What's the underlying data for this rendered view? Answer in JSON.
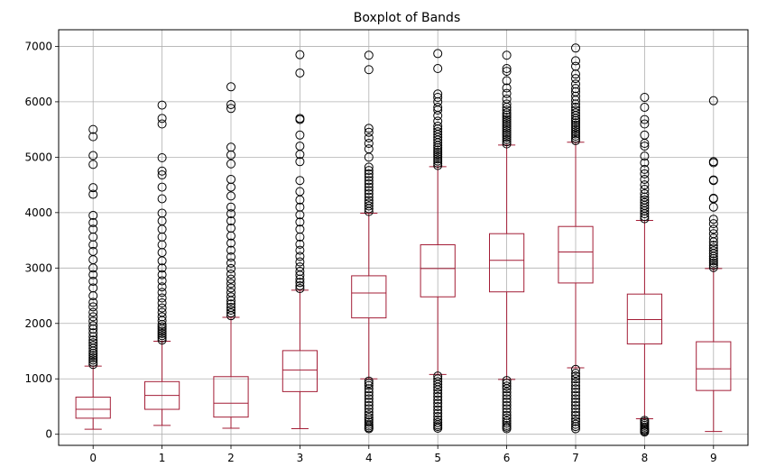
{
  "chart_data": {
    "type": "boxplot",
    "title": "Boxplot of Bands",
    "xlabel": "",
    "ylabel": "",
    "categories": [
      "0",
      "1",
      "2",
      "3",
      "4",
      "5",
      "6",
      "7",
      "8",
      "9"
    ],
    "ylim": [
      -200,
      7300
    ],
    "yticks": [
      0,
      1000,
      2000,
      3000,
      4000,
      5000,
      6000,
      7000
    ],
    "grid": true,
    "box_color": "#a31d36",
    "boxes": [
      {
        "label": "0",
        "whisker_low": 90,
        "q1": 290,
        "median": 450,
        "q3": 670,
        "whisker_high": 1230,
        "outliers_high": [
          1260,
          1300,
          1340,
          1380,
          1420,
          1460,
          1500,
          1550,
          1600,
          1650,
          1700,
          1760,
          1830,
          1900,
          1960,
          2040,
          2120,
          2200,
          2300,
          2380,
          2500,
          2640,
          2760,
          2880,
          3000,
          3150,
          3300,
          3420,
          3560,
          3700,
          3820,
          3950,
          4330,
          4450,
          4870,
          5030,
          5370,
          5500
        ],
        "outliers_low": []
      },
      {
        "label": "1",
        "whisker_low": 160,
        "q1": 450,
        "median": 700,
        "q3": 950,
        "whisker_high": 1680,
        "outliers_high": [
          1700,
          1740,
          1780,
          1820,
          1860,
          1900,
          1940,
          1980,
          2050,
          2120,
          2200,
          2280,
          2370,
          2460,
          2560,
          2660,
          2770,
          2880,
          3000,
          3130,
          3280,
          3420,
          3560,
          3700,
          3850,
          3990,
          4250,
          4460,
          4680,
          4750,
          4990,
          5600,
          5700,
          5940
        ],
        "outliers_low": []
      },
      {
        "label": "2",
        "whisker_low": 110,
        "q1": 310,
        "median": 560,
        "q3": 1040,
        "whisker_high": 2110,
        "outliers_high": [
          2140,
          2190,
          2240,
          2290,
          2350,
          2410,
          2480,
          2560,
          2640,
          2720,
          2800,
          2890,
          2990,
          3090,
          3200,
          3320,
          3450,
          3580,
          3720,
          3850,
          3980,
          4100,
          4300,
          4460,
          4600,
          4880,
          5040,
          5180,
          5880,
          5950,
          6270
        ],
        "outliers_low": []
      },
      {
        "label": "3",
        "whisker_low": 100,
        "q1": 770,
        "median": 1160,
        "q3": 1510,
        "whisker_high": 2600,
        "outliers_high": [
          2630,
          2680,
          2740,
          2800,
          2870,
          2940,
          3020,
          3110,
          3210,
          3320,
          3430,
          3560,
          3700,
          3830,
          3960,
          4100,
          4230,
          4380,
          4580,
          4920,
          5050,
          5200,
          5400,
          5680,
          5700,
          6520,
          6850
        ],
        "outliers_low": []
      },
      {
        "label": "4",
        "whisker_low": 1000,
        "q1": 2100,
        "median": 2550,
        "q3": 2860,
        "whisker_high": 3990,
        "outliers_high": [
          4020,
          4070,
          4120,
          4170,
          4220,
          4280,
          4340,
          4400,
          4460,
          4520,
          4580,
          4640,
          4700,
          4760,
          4820,
          5000,
          5150,
          5250,
          5350,
          5450,
          5520,
          6580,
          6840
        ],
        "outliers_low": [
          960,
          920,
          880,
          820,
          760,
          700,
          640,
          580,
          520,
          460,
          400,
          350,
          300,
          260,
          220,
          180,
          150,
          120,
          100
        ]
      },
      {
        "label": "5",
        "whisker_low": 1080,
        "q1": 2480,
        "median": 2990,
        "q3": 3420,
        "whisker_high": 4830,
        "outliers_high": [
          4850,
          4890,
          4930,
          4970,
          5010,
          5050,
          5090,
          5130,
          5170,
          5210,
          5260,
          5310,
          5360,
          5410,
          5460,
          5510,
          5560,
          5650,
          5750,
          5850,
          5900,
          6000,
          6080,
          6140,
          6600,
          6870
        ],
        "outliers_low": [
          1050,
          1000,
          950,
          900,
          850,
          800,
          740,
          680,
          620,
          560,
          500,
          440,
          380,
          320,
          260,
          210,
          170,
          140,
          110
        ]
      },
      {
        "label": "6",
        "whisker_low": 990,
        "q1": 2570,
        "median": 3140,
        "q3": 3620,
        "whisker_high": 5220,
        "outliers_high": [
          5240,
          5280,
          5320,
          5360,
          5400,
          5440,
          5480,
          5520,
          5560,
          5600,
          5640,
          5680,
          5720,
          5760,
          5800,
          5850,
          5900,
          5960,
          6050,
          6150,
          6250,
          6380,
          6550,
          6600,
          6840
        ],
        "outliers_low": [
          970,
          920,
          870,
          820,
          760,
          700,
          640,
          580,
          520,
          460,
          400,
          340,
          290,
          240,
          200,
          160,
          130,
          100
        ]
      },
      {
        "label": "7",
        "whisker_low": 1200,
        "q1": 2730,
        "median": 3290,
        "q3": 3750,
        "whisker_high": 5270,
        "outliers_high": [
          5300,
          5340,
          5380,
          5420,
          5460,
          5500,
          5540,
          5580,
          5620,
          5660,
          5700,
          5750,
          5800,
          5850,
          5900,
          5960,
          6030,
          6100,
          6180,
          6240,
          6320,
          6420,
          6500,
          6640,
          6740,
          6970
        ],
        "outliers_low": [
          1170,
          1100,
          1050,
          1000,
          940,
          880,
          820,
          760,
          700,
          640,
          580,
          520,
          460,
          400,
          340,
          280,
          230,
          180,
          140,
          100
        ]
      },
      {
        "label": "8",
        "whisker_low": 280,
        "q1": 1630,
        "median": 2070,
        "q3": 2530,
        "whisker_high": 3860,
        "outliers_high": [
          3890,
          3930,
          3980,
          4030,
          4080,
          4130,
          4180,
          4230,
          4280,
          4340,
          4420,
          4500,
          4600,
          4700,
          4780,
          4900,
          5020,
          5200,
          5250,
          5400,
          5600,
          5680,
          5900,
          6080
        ],
        "outliers_low": [
          250,
          220,
          190,
          160,
          130,
          100,
          80,
          60,
          40
        ]
      },
      {
        "label": "9",
        "whisker_low": 50,
        "q1": 790,
        "median": 1180,
        "q3": 1670,
        "whisker_high": 2990,
        "outliers_high": [
          3010,
          3050,
          3090,
          3130,
          3170,
          3210,
          3260,
          3310,
          3360,
          3410,
          3470,
          3540,
          3620,
          3700,
          3800,
          3880,
          4100,
          4250,
          4260,
          4580,
          4590,
          4900,
          4920,
          6020
        ],
        "outliers_low": []
      }
    ]
  }
}
